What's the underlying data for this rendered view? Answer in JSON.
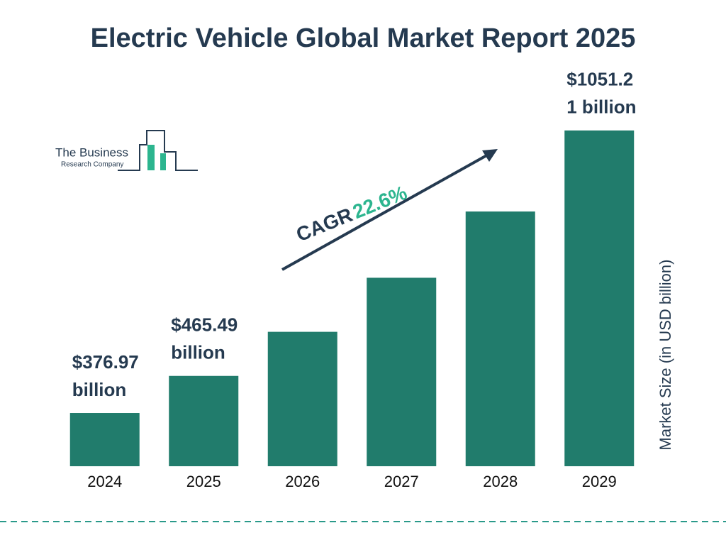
{
  "chart_data": {
    "type": "bar",
    "title": "Electric Vehicle Global Market Report 2025",
    "y_axis_label": "Market Size (in USD billion)",
    "categories": [
      "2024",
      "2025",
      "2026",
      "2027",
      "2028",
      "2029"
    ],
    "values": [
      376.97,
      465.49,
      570.7,
      699.7,
      857.8,
      1051.21
    ],
    "value_labels": [
      [
        "$376.97",
        "billion"
      ],
      [
        "$465.49",
        "billion"
      ],
      null,
      null,
      null,
      [
        "$1051.2",
        "1 billion"
      ]
    ],
    "color": "#217c6c",
    "ylim": [
      250,
      1100
    ],
    "annotations": {
      "cagr_label": "CAGR",
      "cagr_value": "22.6%"
    },
    "logo": {
      "line1": "The Business",
      "line2": "Research Company"
    }
  }
}
